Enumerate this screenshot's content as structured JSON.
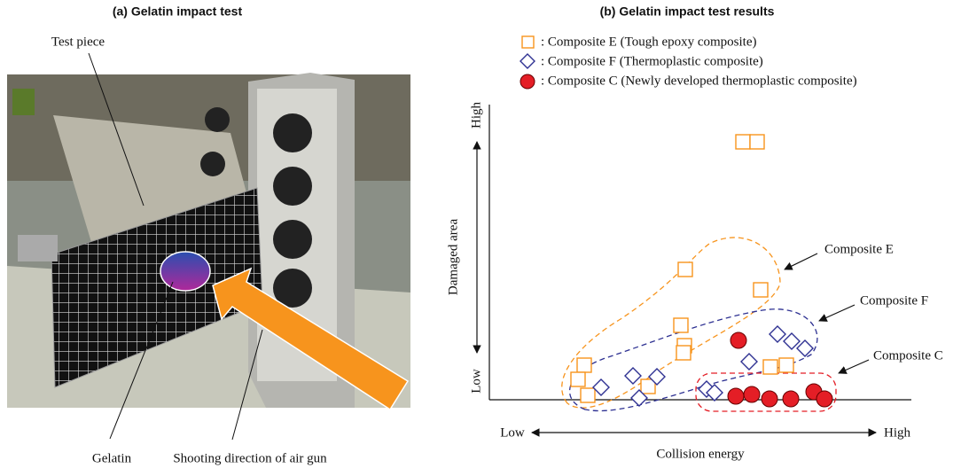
{
  "panel_a": {
    "caption": "(a)  Gelatin impact test",
    "labels": [
      "Test piece",
      "Gelatin",
      "Shooting direction of air gun"
    ]
  },
  "panel_b": {
    "caption": "(b)  Gelatin impact test results",
    "legend": [
      ": Composite E (Tough epoxy composite)",
      ": Composite F (Thermoplastic composite)",
      ": Composite C (Newly developed thermoplastic composite)"
    ],
    "y_axis": {
      "label": "Damaged area",
      "low": "Low",
      "high": "High"
    },
    "x_axis": {
      "label": "Collision energy",
      "low": "Low",
      "high": "High"
    },
    "annotations": [
      "Composite E",
      "Composite F",
      "Composite C"
    ]
  }
}
